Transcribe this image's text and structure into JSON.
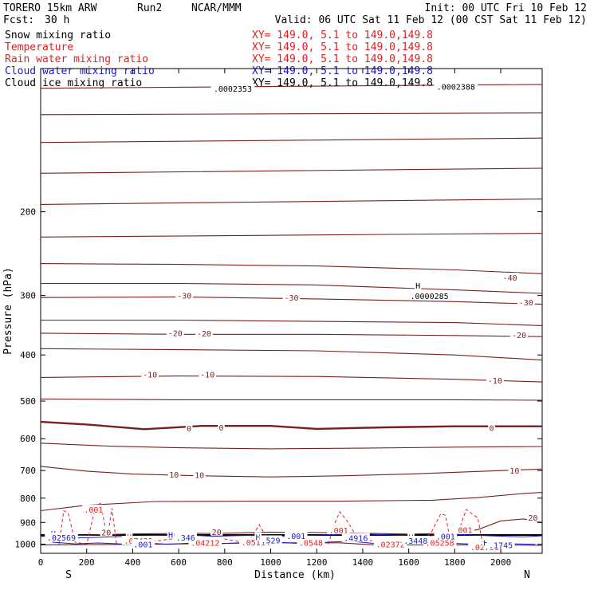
{
  "header": {
    "model": "TORERO 15km ARW",
    "run": "Run2",
    "org": "NCAR/MMM",
    "init": "Init: 00 UTC Fri 10 Feb 12",
    "fcst_label": "Fcst:",
    "fcst_value": "30 h",
    "valid": "Valid: 06 UTC Sat 11 Feb 12 (00 CST Sat 11 Feb 12)"
  },
  "colors": {
    "black": "#000000",
    "temperature": "#7a1f1f",
    "rain": "#e02020",
    "cloud_water": "#1a1acc"
  },
  "legend": [
    {
      "label": "Snow mixing ratio",
      "xy": "XY= 149.0,  5.1 to 149.0,149.8",
      "color": "#000000"
    },
    {
      "label": "Temperature",
      "xy": "XY= 149.0,  5.1 to 149.0,149.8",
      "color": "#e02020"
    },
    {
      "label": "Rain water mixing ratio",
      "xy": "XY= 149.0,  5.1 to 149.0,149.8",
      "color": "#e02020"
    },
    {
      "label": "Cloud water mixing ratio",
      "xy": "XY= 149.0,  5.1 to 149.0,149.8",
      "color": "#1a1acc"
    },
    {
      "label": "Cloud ice mixing ratio",
      "xy": "XY= 149.0,  5.1 to 149.0,149.8",
      "color": "#000000"
    }
  ],
  "chart_data": {
    "type": "line",
    "title": "",
    "xlabel": "Distance (km)",
    "ylabel": "Pressure (hPa)",
    "x_ticks": [
      0,
      200,
      400,
      600,
      800,
      1000,
      1200,
      1400,
      1600,
      1800,
      2000
    ],
    "y_ticks": [
      200,
      300,
      400,
      500,
      600,
      700,
      800,
      900,
      1000
    ],
    "xlim": [
      0,
      2180
    ],
    "ylim": [
      1045,
      100
    ],
    "y_scale": "log",
    "grid": false,
    "left_end_label": "S",
    "right_end_label": "N",
    "temperature_labels": [
      {
        "text": "-40",
        "x": 2040,
        "p": 277
      },
      {
        "text": "-30",
        "x": 625,
        "p": 302
      },
      {
        "text": "-30",
        "x": 1090,
        "p": 305
      },
      {
        "text": "-30",
        "x": 2110,
        "p": 312
      },
      {
        "text": "-20",
        "x": 585,
        "p": 362
      },
      {
        "text": "-20",
        "x": 710,
        "p": 363
      },
      {
        "text": "-20",
        "x": 2080,
        "p": 366
      },
      {
        "text": "-10",
        "x": 475,
        "p": 443
      },
      {
        "text": "-10",
        "x": 725,
        "p": 443
      },
      {
        "text": "-10",
        "x": 1975,
        "p": 456
      },
      {
        "text": "0",
        "x": 645,
        "p": 574
      },
      {
        "text": "0",
        "x": 785,
        "p": 572
      },
      {
        "text": "0",
        "x": 1960,
        "p": 573
      },
      {
        "text": "10",
        "x": 580,
        "p": 719
      },
      {
        "text": "10",
        "x": 690,
        "p": 720
      },
      {
        "text": "10",
        "x": 2060,
        "p": 705
      },
      {
        "text": "20",
        "x": 285,
        "p": 951
      },
      {
        "text": "20",
        "x": 765,
        "p": 948
      },
      {
        "text": "20",
        "x": 2140,
        "p": 886
      }
    ],
    "snow_labels": [
      {
        "text": ".0002353",
        "x": 835,
        "p": 111
      },
      {
        "text": ".0002388",
        "x": 1805,
        "p": 110
      },
      {
        "text": "H",
        "x": 1640,
        "p": 288
      },
      {
        "text": ".0000285",
        "x": 1690,
        "p": 303
      }
    ],
    "rain_labels": [
      {
        "text": ".001",
        "x": 230,
        "p": 852
      },
      {
        "text": ".001",
        "x": 1295,
        "p": 942
      },
      {
        "text": ".001",
        "x": 1835,
        "p": 940
      },
      {
        "text": "H",
        "x": 385,
        "p": 972
      },
      {
        "text": ".07421",
        "x": 425,
        "p": 990
      },
      {
        "text": ".04212",
        "x": 715,
        "p": 1000
      },
      {
        "text": ".05114",
        "x": 935,
        "p": 998
      },
      {
        "text": ".0548",
        "x": 1175,
        "p": 999
      },
      {
        "text": ".02372",
        "x": 1520,
        "p": 1008
      },
      {
        "text": ".05258",
        "x": 1735,
        "p": 999
      },
      {
        "text": ".02758",
        "x": 1930,
        "p": 1022
      }
    ],
    "cloud_water_labels": [
      {
        "text": "H",
        "x": 55,
        "p": 957
      },
      {
        "text": ".02569",
        "x": 90,
        "p": 975
      },
      {
        "text": "H",
        "x": 565,
        "p": 962
      },
      {
        "text": ".346",
        "x": 630,
        "p": 975
      },
      {
        "text": ".001",
        "x": 445,
        "p": 1008
      },
      {
        "text": "H",
        "x": 945,
        "p": 973
      },
      {
        "text": ".529",
        "x": 1000,
        "p": 988
      },
      {
        "text": ".001",
        "x": 1110,
        "p": 968
      },
      {
        "text": ".4916",
        "x": 1370,
        "p": 977
      },
      {
        "text": "H",
        "x": 1610,
        "p": 973
      },
      {
        "text": ".3448",
        "x": 1630,
        "p": 990
      },
      {
        "text": ".001",
        "x": 1760,
        "p": 970
      },
      {
        "text": "H",
        "x": 1935,
        "p": 1000
      },
      {
        "text": ".1745",
        "x": 2000,
        "p": 1011
      }
    ],
    "temperature_contours": [
      {
        "value": -70,
        "x": [
          0,
          2180
        ],
        "p": [
          110,
          108
        ]
      },
      {
        "value": -65,
        "x": [
          0,
          2180
        ],
        "p": [
          125,
          124
        ]
      },
      {
        "value": -60,
        "x": [
          0,
          2180
        ],
        "p": [
          143,
          140
        ]
      },
      {
        "value": -55,
        "x": [
          0,
          2180
        ],
        "p": [
          166,
          162
        ]
      },
      {
        "value": -50,
        "x": [
          0,
          2180
        ],
        "p": [
          193,
          188
        ]
      },
      {
        "value": -45,
        "x": [
          0,
          2180
        ],
        "p": [
          226,
          222
        ]
      },
      {
        "value": -40,
        "x": [
          0,
          600,
          1200,
          1800,
          2180
        ],
        "p": [
          257,
          258,
          260,
          265,
          270
        ]
      },
      {
        "value": -35,
        "x": [
          0,
          600,
          1200,
          1800,
          2180
        ],
        "p": [
          283,
          283,
          285,
          292,
          297
        ]
      },
      {
        "value": -30,
        "x": [
          0,
          600,
          1200,
          1800,
          2180
        ],
        "p": [
          303,
          302,
          305,
          309,
          313
        ]
      },
      {
        "value": -25,
        "x": [
          0,
          600,
          1200,
          1800,
          2180
        ],
        "p": [
          338,
          338,
          340,
          342,
          347
        ]
      },
      {
        "value": -20,
        "x": [
          0,
          600,
          1200,
          1800,
          2180
        ],
        "p": [
          360,
          362,
          362,
          364,
          366
        ]
      },
      {
        "value": -15,
        "x": [
          0,
          600,
          1200,
          1800,
          2180
        ],
        "p": [
          388,
          390,
          392,
          400,
          410
        ]
      },
      {
        "value": -10,
        "x": [
          0,
          600,
          1200,
          1800,
          2180
        ],
        "p": [
          446,
          443,
          444,
          450,
          456
        ]
      },
      {
        "value": -5,
        "x": [
          0,
          600,
          1200,
          1800,
          2180
        ],
        "p": [
          495,
          497,
          497,
          497,
          498
        ]
      },
      {
        "value": 0,
        "x": [
          0,
          200,
          450,
          700,
          1000,
          1200,
          1500,
          1800,
          2180
        ],
        "p": [
          553,
          560,
          573,
          564,
          564,
          572,
          568,
          565,
          565
        ]
      },
      {
        "value": 5,
        "x": [
          0,
          300,
          600,
          1000,
          1400,
          1800,
          2180
        ],
        "p": [
          613,
          622,
          627,
          630,
          628,
          625,
          623
        ]
      },
      {
        "value": 10,
        "x": [
          0,
          200,
          400,
          700,
          1000,
          1300,
          1600,
          1900,
          2180
        ],
        "p": [
          686,
          702,
          712,
          718,
          722,
          718,
          712,
          703,
          695
        ]
      },
      {
        "value": 15,
        "x": [
          0,
          200,
          500,
          900,
          1300,
          1700,
          1900,
          2100,
          2180
        ],
        "p": [
          850,
          828,
          813,
          812,
          812,
          808,
          798,
          782,
          778
        ]
      },
      {
        "value": 20,
        "x": [
          0,
          400,
          800,
          1000,
          1200,
          1400,
          1600,
          1800,
          1900,
          2000,
          2100,
          2180
        ],
        "p": [
          963,
          951,
          948,
          943,
          945,
          948,
          952,
          947,
          932,
          893,
          885,
          900
        ]
      },
      {
        "value": 25,
        "x": [
          0,
          500,
          1000,
          1300,
          1450,
          1700,
          2000,
          2180
        ],
        "p": [
          1003,
          1000,
          993,
          993,
          1003,
          1003,
          1003,
          1006
        ]
      }
    ],
    "cloud_water_contours": [
      {
        "value": 0.001,
        "x": [
          0,
          150,
          300,
          450,
          600,
          750,
          900,
          1050,
          1200,
          1350,
          1500,
          1650,
          1800,
          1950,
          2100,
          2180
        ],
        "p": [
          960,
          970,
          965,
          960,
          955,
          962,
          958,
          963,
          957,
          950,
          955,
          962,
          953,
          960,
          965,
          960
        ]
      },
      {
        "value": 0.1,
        "x": [
          50,
          150,
          250,
          350,
          450,
          550,
          650,
          750,
          850,
          950,
          1050,
          1150,
          1250,
          1350,
          1450,
          1550,
          1650,
          1750,
          1850,
          1950,
          2050,
          2150
        ],
        "p": [
          990,
          998,
          994,
          999,
          993,
          1000,
          995,
          999,
          994,
          987,
          992,
          998,
          990,
          985,
          996,
          993,
          988,
          994,
          998,
          1002,
          998,
          1000
        ]
      }
    ],
    "rain_contours": [
      {
        "value": 0.001,
        "x": [
          80,
          100,
          120,
          150,
          200,
          240,
          260,
          290,
          310,
          330
        ],
        "p": [
          1000,
          850,
          860,
          990,
          1000,
          830,
          820,
          970,
          840,
          1000
        ]
      },
      {
        "value": 0.001,
        "x": [
          370,
          420,
          500,
          600,
          700,
          800,
          900,
          950,
          1000
        ],
        "p": [
          1000,
          975,
          985,
          970,
          988,
          975,
          995,
          910,
          1000
        ]
      },
      {
        "value": 0.001,
        "x": [
          1250,
          1280,
          1300,
          1330,
          1380,
          1450,
          1500,
          1550
        ],
        "p": [
          1000,
          900,
          855,
          890,
          975,
          985,
          1000,
          1010
        ]
      },
      {
        "value": 0.001,
        "x": [
          1650,
          1700,
          1740,
          1760,
          1780,
          1800,
          1830,
          1850,
          1870,
          1900,
          1920,
          1950
        ],
        "p": [
          1000,
          940,
          862,
          870,
          980,
          990,
          900,
          845,
          860,
          880,
          990,
          1020
        ]
      }
    ]
  }
}
